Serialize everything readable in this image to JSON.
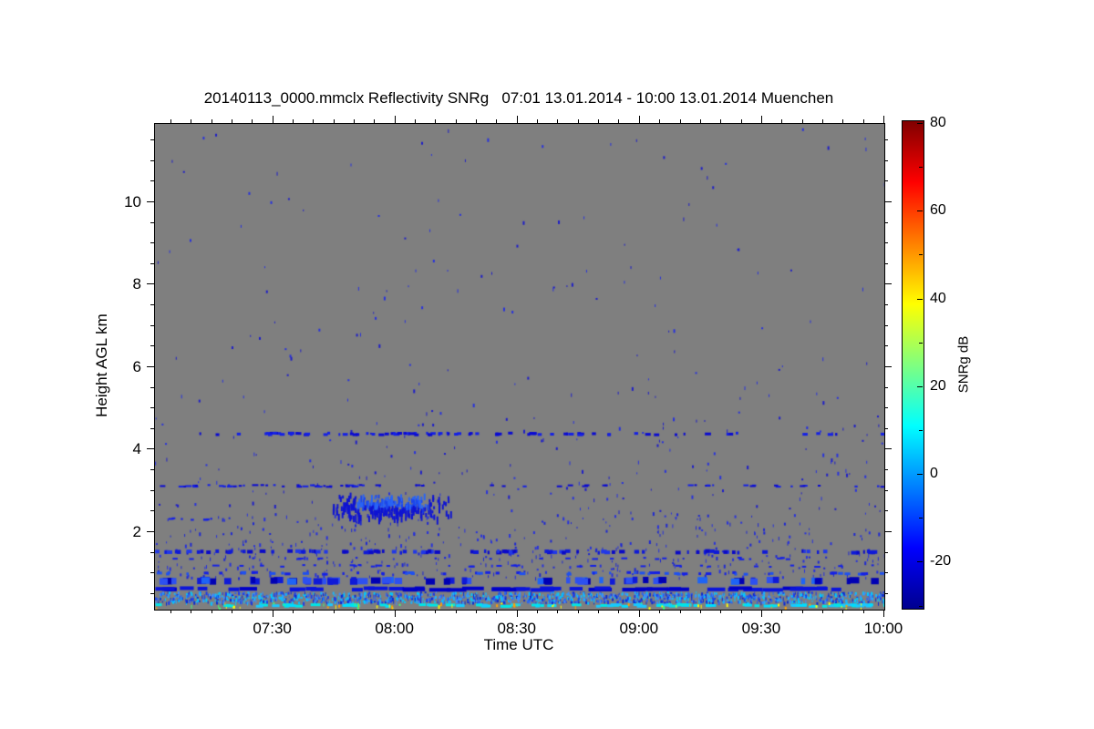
{
  "chart_data": {
    "type": "heatmap",
    "title": "20140113_0000.mmclx Reflectivity SNRg   07:01 13.01.2014 - 10:00 13.01.2014 Muenchen",
    "xlabel": "Time UTC",
    "ylabel": "Height AGL km",
    "site": "Muenchen",
    "time_start": "07:01 13.01.2014",
    "time_end": "10:00 13.01.2014",
    "x_axis": {
      "start_min": 0,
      "end_min": 179,
      "tick_labels": [
        "07:30",
        "08:00",
        "08:30",
        "09:00",
        "09:30",
        "10:00"
      ],
      "tick_minutes": [
        29,
        59,
        89,
        119,
        149,
        179
      ],
      "minor_step_min": 5
    },
    "y_axis": {
      "min_km": 0.12,
      "max_km": 11.9,
      "tick_labels": [
        "2",
        "4",
        "6",
        "8",
        "10"
      ],
      "tick_km": [
        2,
        4,
        6,
        8,
        10
      ],
      "minor_step_km": 0.5
    },
    "colorbar": {
      "label": "SNRg dB",
      "min": -30.5,
      "max": 80.6,
      "tick_values": [
        80,
        60,
        40,
        20,
        0,
        -20
      ],
      "tick_labels": [
        "80",
        "60",
        "40",
        "20",
        "0",
        "-20"
      ],
      "minor_step": 10,
      "colormap": "jet",
      "gradient": [
        [
          "#00008f",
          0
        ],
        [
          "#0000ff",
          0.125
        ],
        [
          "#00ffff",
          0.375
        ],
        [
          "#ffff00",
          0.625
        ],
        [
          "#ff0000",
          0.875
        ],
        [
          "#800000",
          1
        ]
      ]
    },
    "background_color": "#7f7f7f",
    "seed": 1337,
    "layers": [
      {
        "name": "upper-noise",
        "type": "scatter",
        "t": [
          0,
          179
        ],
        "km": [
          5.0,
          11.85
        ],
        "count": 130,
        "colors": [
          "#1e1ec8",
          "#2832dc"
        ]
      },
      {
        "name": "mid-noise",
        "type": "scatter",
        "t": [
          0,
          179
        ],
        "km": [
          2.5,
          5.0
        ],
        "count": 170,
        "colors": [
          "#1e1ec8",
          "#2832dc"
        ]
      },
      {
        "name": "low-noise",
        "type": "scatter",
        "t": [
          0,
          179
        ],
        "km": [
          1.65,
          2.5
        ],
        "count": 200,
        "colors": [
          "#1e28d2",
          "#2832dc"
        ]
      },
      {
        "name": "sublayer-noise",
        "type": "scatter",
        "t": [
          0,
          179
        ],
        "km": [
          0.9,
          1.65
        ],
        "count": 240,
        "colors": [
          "#1e28d2",
          "#2832dc"
        ]
      },
      {
        "name": "layer-4p4km",
        "type": "dashes",
        "km": 4.38,
        "h_km": 0.06,
        "runs": [
          [
            8,
            179,
            0.2
          ],
          [
            24,
            94,
            0.45
          ],
          [
            26,
            34,
            0.95
          ]
        ],
        "colors": [
          "#0a0ad2",
          "#1420e6"
        ]
      },
      {
        "name": "layer-3p1km",
        "type": "dashes",
        "km": 3.12,
        "h_km": 0.05,
        "runs": [
          [
            0,
            179,
            0.22
          ],
          [
            2,
            62,
            0.35
          ]
        ],
        "colors": [
          "#0a0ad2",
          "#1420e6"
        ]
      },
      {
        "name": "cloud-blob-2p6km",
        "type": "blob",
        "t": [
          42,
          74
        ],
        "km": [
          2.32,
          2.98
        ],
        "count": 300,
        "colors": [
          "#0f14d2",
          "#1c46eb",
          "#2a64f5"
        ]
      },
      {
        "name": "layer-2p3km-left",
        "type": "dashes",
        "km": 2.32,
        "h_km": 0.05,
        "runs": [
          [
            1,
            14,
            0.5
          ]
        ],
        "colors": [
          "#1420e6"
        ]
      },
      {
        "name": "layer-1p5km",
        "type": "dashes",
        "km": 1.52,
        "h_km": 0.09,
        "runs": [
          [
            0,
            179,
            0.5
          ]
        ],
        "colors": [
          "#0f1ad8",
          "#2138e8",
          "#0a0ac8"
        ]
      },
      {
        "name": "layer-1p35km",
        "type": "dashes",
        "km": 1.36,
        "h_km": 0.05,
        "runs": [
          [
            0,
            179,
            0.12
          ]
        ],
        "colors": [
          "#1420e6"
        ]
      },
      {
        "name": "layer-1p2km",
        "type": "dashes",
        "km": 1.18,
        "h_km": 0.05,
        "runs": [
          [
            0,
            179,
            0.17
          ]
        ],
        "colors": [
          "#1420e6"
        ]
      },
      {
        "name": "layer-1p0km",
        "type": "dashes",
        "km": 1.0,
        "h_km": 0.06,
        "runs": [
          [
            0,
            179,
            0.3
          ]
        ],
        "colors": [
          "#1420e6",
          "#1e50f0"
        ]
      },
      {
        "name": "band-0p8km",
        "type": "dashes",
        "km": 0.82,
        "h_km": 0.16,
        "dash": [
          4,
          12
        ],
        "runs": [
          [
            0,
            179,
            0.6
          ]
        ],
        "colors": [
          "#0f1ad8",
          "#2d50f0",
          "#0000b4",
          "#1e64f5"
        ]
      },
      {
        "name": "solid-line-0p62km",
        "type": "dashes",
        "km": 0.62,
        "h_km": 0.08,
        "dash": [
          10,
          26
        ],
        "runs": [
          [
            0,
            179,
            0.97
          ]
        ],
        "colors": [
          "#0000c8",
          "#0a14dc"
        ]
      },
      {
        "name": "busy-band-0p4km",
        "type": "scatter",
        "t": [
          0,
          179
        ],
        "km": [
          0.3,
          0.56
        ],
        "count": 1500,
        "colors": [
          "#1e3ce6",
          "#2d64f0",
          "#00c8ff",
          "#19b4ff",
          "#0a28d2",
          "#3c8cff"
        ]
      },
      {
        "name": "cyan-line-0p22km",
        "type": "dashes",
        "km": 0.22,
        "h_km": 0.07,
        "dash": [
          4,
          12
        ],
        "runs": [
          [
            0,
            90,
            0.55
          ],
          [
            90,
            179,
            0.92
          ]
        ],
        "colors": [
          "#00dcff",
          "#00e6e6",
          "#19c8ff"
        ]
      },
      {
        "name": "clutter-specks",
        "type": "scatter",
        "t": [
          0,
          179
        ],
        "km": [
          0.17,
          0.3
        ],
        "count": 60,
        "colors": [
          "#ffff00",
          "#ffff00",
          "#3cff78",
          "#ffa000"
        ]
      }
    ]
  }
}
